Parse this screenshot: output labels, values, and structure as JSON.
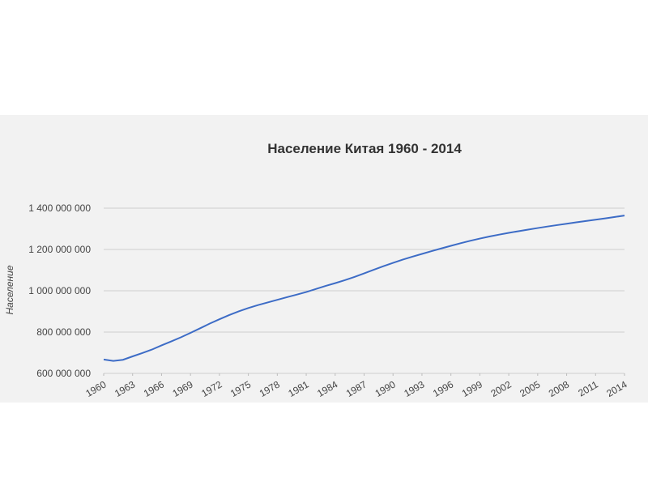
{
  "chart_data": {
    "type": "line",
    "title": "Население Китая 1960 - 2014",
    "y_label": "Население",
    "x": [
      1960,
      1961,
      1962,
      1963,
      1964,
      1965,
      1966,
      1967,
      1968,
      1969,
      1970,
      1971,
      1972,
      1973,
      1974,
      1975,
      1976,
      1977,
      1978,
      1979,
      1980,
      1981,
      1982,
      1983,
      1984,
      1985,
      1986,
      1987,
      1988,
      1989,
      1990,
      1991,
      1992,
      1993,
      1994,
      1995,
      1996,
      1997,
      1998,
      1999,
      2000,
      2001,
      2002,
      2003,
      2004,
      2005,
      2006,
      2007,
      2008,
      2009,
      2010,
      2011,
      2012,
      2013,
      2014
    ],
    "values": [
      667070000,
      660330000,
      665770000,
      682335000,
      698355000,
      715185000,
      735400000,
      754550000,
      774510000,
      796025000,
      818315000,
      841105000,
      862030000,
      881940000,
      900350000,
      916395000,
      930685000,
      943455000,
      956165000,
      969005000,
      981235000,
      993885000,
      1008630000,
      1023310000,
      1036825000,
      1051040000,
      1066790000,
      1084035000,
      1101630000,
      1118650000,
      1135185000,
      1150780000,
      1164970000,
      1178440000,
      1191835000,
      1204855000,
      1217550000,
      1230075000,
      1241935000,
      1252735000,
      1262645000,
      1271850000,
      1280400000,
      1288400000,
      1296075000,
      1303720000,
      1311020000,
      1317885000,
      1324655000,
      1331260000,
      1337705000,
      1344130000,
      1350695000,
      1357380000,
      1364270000
    ],
    "color": "#3d6cc6",
    "xlim": [
      1960,
      2014
    ],
    "xticks": [
      1960,
      1963,
      1966,
      1969,
      1972,
      1975,
      1978,
      1981,
      1984,
      1987,
      1990,
      1993,
      1996,
      1999,
      2002,
      2005,
      2008,
      2011,
      2014
    ],
    "ylim": [
      600000000,
      1400000000
    ],
    "yticks": [
      {
        "value": 600000000,
        "label": "600 000 000"
      },
      {
        "value": 800000000,
        "label": "800 000 000"
      },
      {
        "value": 1000000000,
        "label": "1 000 000 000"
      },
      {
        "value": 1200000000,
        "label": "1 200 000 000"
      },
      {
        "value": 1400000000,
        "label": "1 400 000 000"
      }
    ],
    "grid": true
  }
}
